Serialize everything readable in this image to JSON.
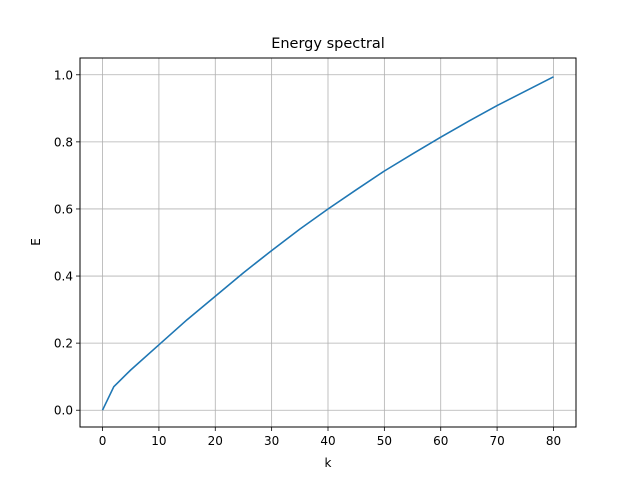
{
  "chart_data": {
    "type": "line",
    "title": "Energy spectral",
    "xlabel": "k",
    "ylabel": "E",
    "xlim": [
      -4,
      84
    ],
    "ylim": [
      -0.05,
      1.05
    ],
    "x_ticks": [
      0,
      10,
      20,
      30,
      40,
      50,
      60,
      70,
      80
    ],
    "x_tick_labels": [
      "0",
      "10",
      "20",
      "30",
      "40",
      "50",
      "60",
      "70",
      "80"
    ],
    "y_ticks": [
      0.0,
      0.2,
      0.4,
      0.6,
      0.8,
      1.0
    ],
    "y_tick_labels": [
      "0.0",
      "0.2",
      "0.4",
      "0.6",
      "0.8",
      "1.0"
    ],
    "grid": true,
    "legend": null,
    "series": [
      {
        "name": "E(k)",
        "color": "#1f77b4",
        "x": [
          0,
          2,
          5,
          10,
          15,
          20,
          25,
          30,
          35,
          40,
          45,
          50,
          55,
          60,
          65,
          70,
          75,
          80
        ],
        "y": [
          0.0,
          0.07,
          0.12,
          0.195,
          0.27,
          0.34,
          0.41,
          0.476,
          0.54,
          0.6,
          0.657,
          0.713,
          0.764,
          0.814,
          0.862,
          0.908,
          0.951,
          0.994
        ]
      }
    ]
  },
  "colors": {
    "line": "#1f77b4",
    "grid": "#b0b0b0",
    "axes": "#000000",
    "background": "#ffffff"
  }
}
